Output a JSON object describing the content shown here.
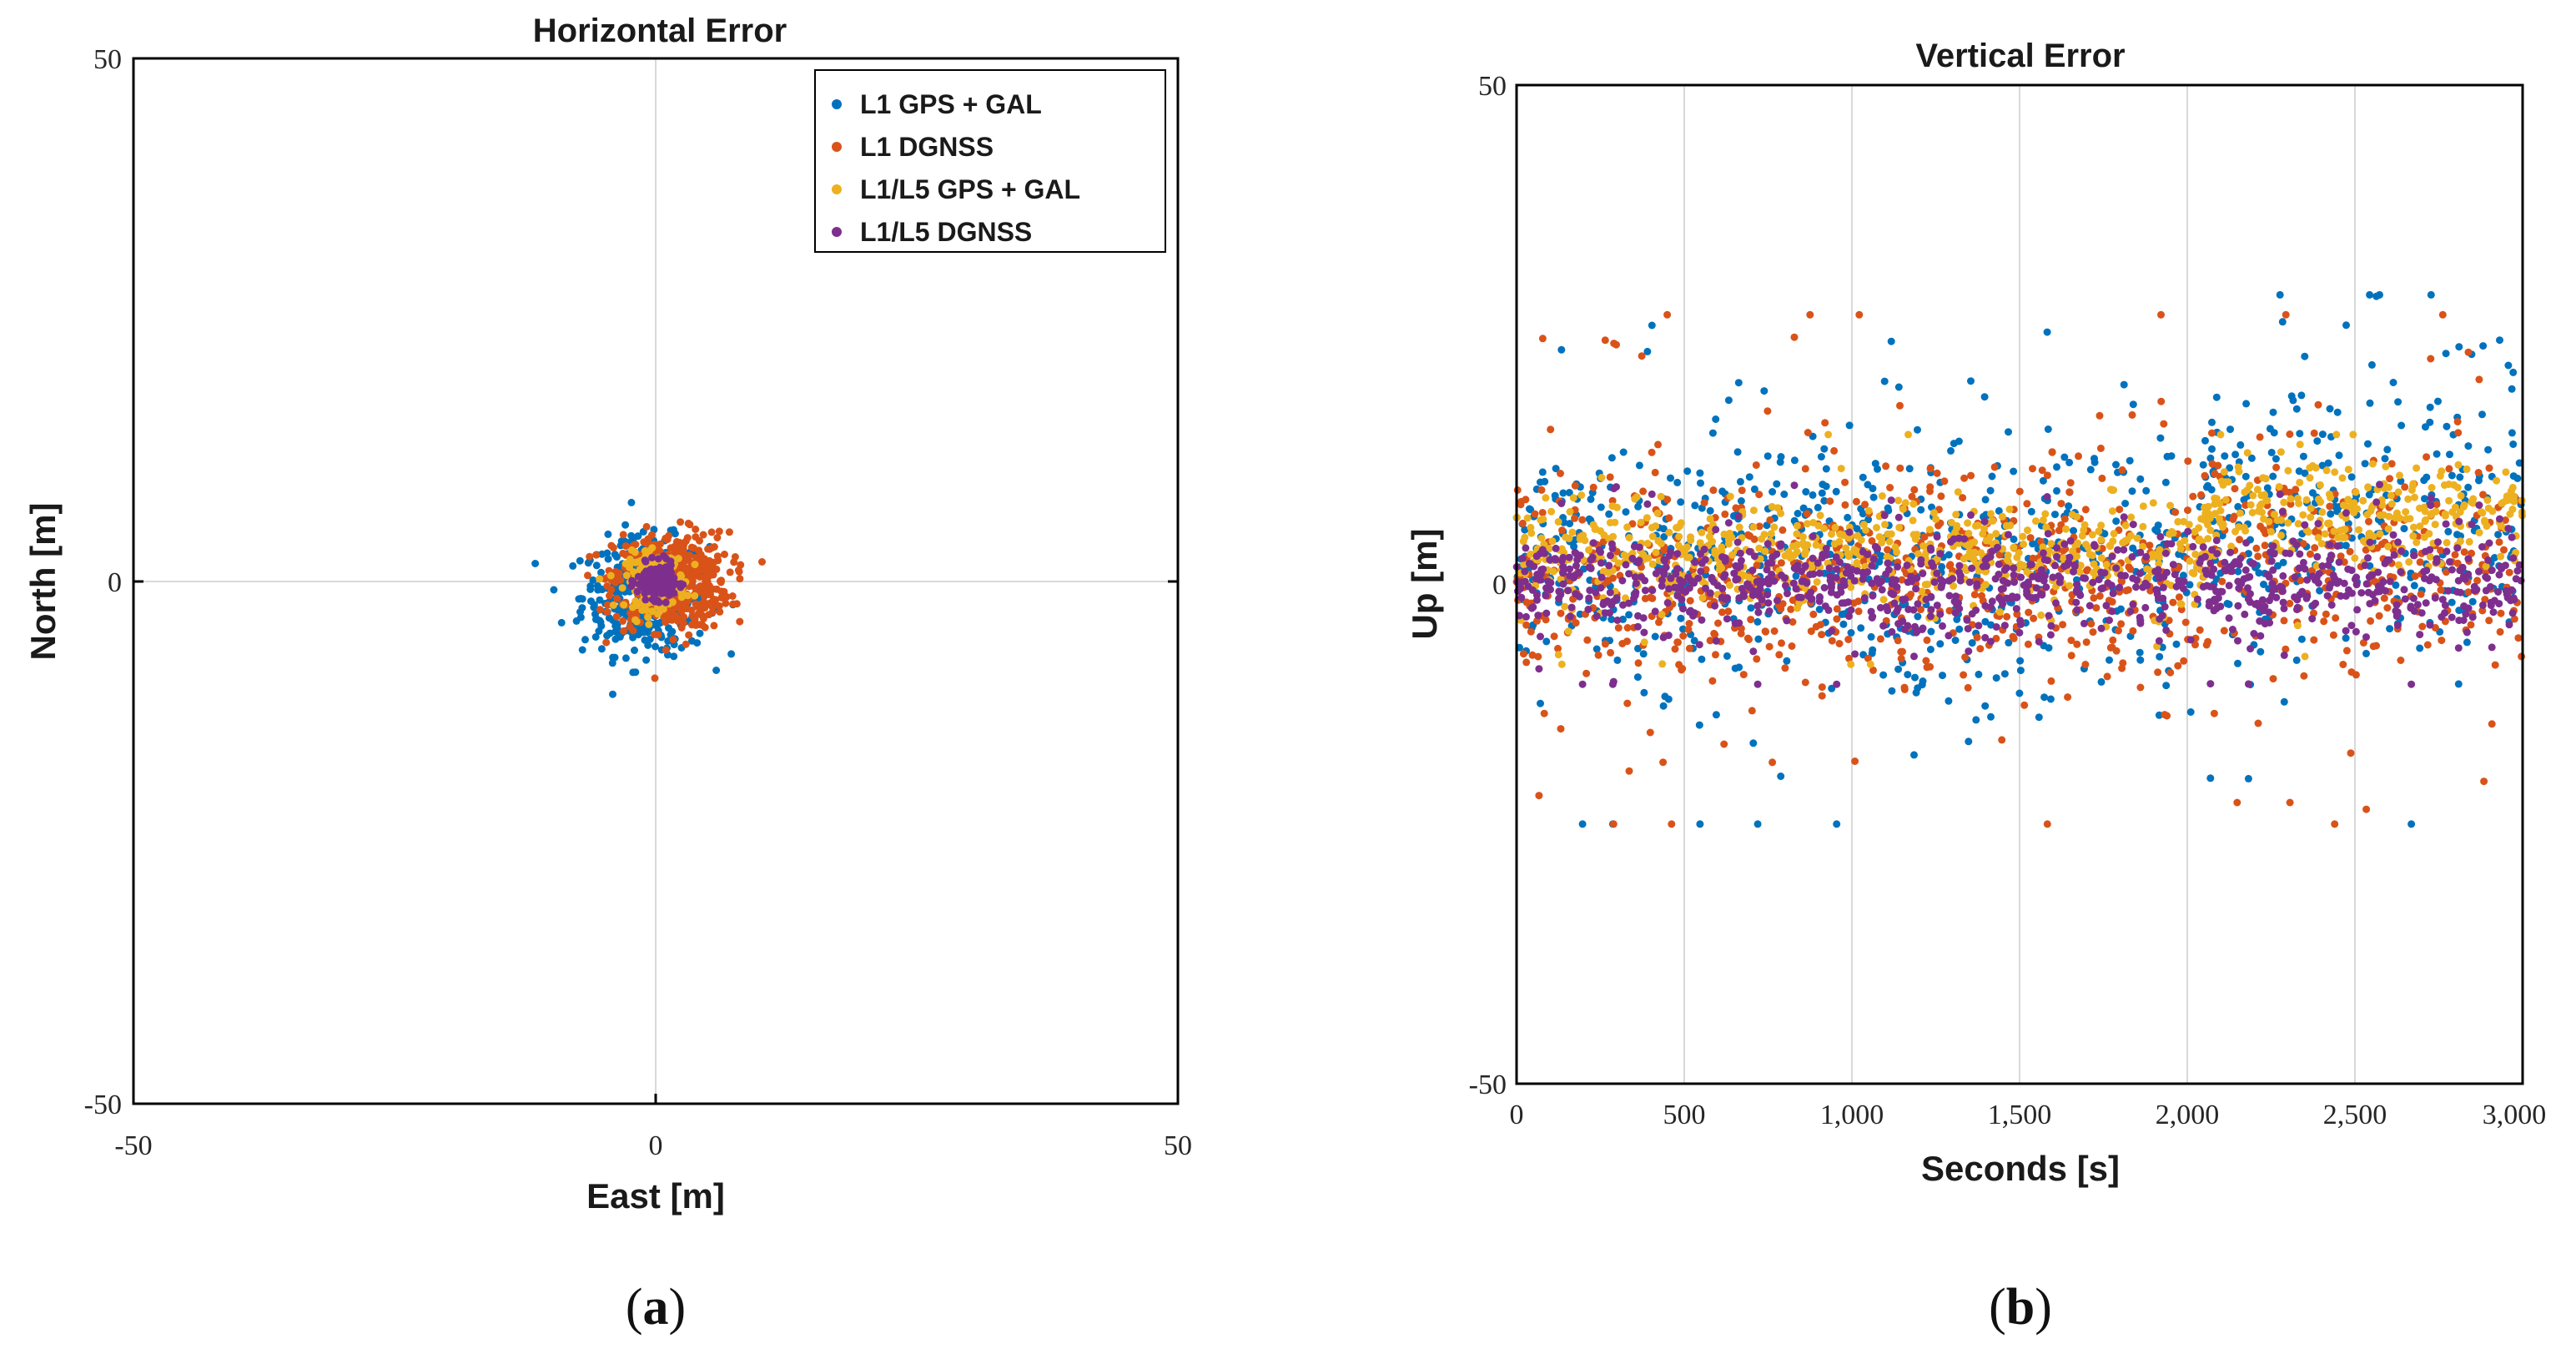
{
  "colors": {
    "series": [
      "#0072BD",
      "#D95319",
      "#EDB120",
      "#7E2F8E"
    ],
    "grid": "#d9d9d9",
    "axis": "#000000"
  },
  "chart_data": [
    {
      "type": "scatter",
      "title": "Horizontal Error",
      "xlabel": "East [m]",
      "ylabel": "North [m]",
      "xlim": [
        -50,
        50
      ],
      "ylim": [
        -50,
        50
      ],
      "xticks": [
        "-50",
        "0",
        "50"
      ],
      "yticks": [
        "-50",
        "0",
        "50"
      ],
      "grid": "zero lines",
      "legend_position": "top-right",
      "caption": "a",
      "series": [
        {
          "name": "L1 GPS + GAL",
          "center": [
            -1,
            -1.5
          ],
          "spread": [
            5.5,
            5.0
          ],
          "points": 420
        },
        {
          "name": "L1 DGNSS",
          "center": [
            1.5,
            0
          ],
          "spread": [
            5.0,
            4.2
          ],
          "points": 520
        },
        {
          "name": "L1/L5 GPS + GAL",
          "center": [
            0,
            0
          ],
          "spread": [
            2.6,
            2.4
          ],
          "points": 200
        },
        {
          "name": "L1/L5 DGNSS",
          "center": [
            0,
            0
          ],
          "spread": [
            1.6,
            1.5
          ],
          "points": 200
        }
      ]
    },
    {
      "type": "scatter",
      "title": "Vertical Error",
      "xlabel": "Seconds [s]",
      "ylabel": "Up [m]",
      "xlim": [
        0,
        3000
      ],
      "ylim": [
        -50,
        50
      ],
      "xticks": [
        "0",
        "500",
        "1,000",
        "1,500",
        "2,000",
        "2,500",
        "3,000"
      ],
      "yticks": [
        "-50",
        "0",
        "50"
      ],
      "grid": "vertical",
      "caption": "b",
      "series": [
        {
          "name": "L1 GPS + GAL",
          "range_min": -24,
          "range_max": 29,
          "typical_sigma": 8
        },
        {
          "name": "L1 DGNSS",
          "range_min": -24,
          "range_max": 27,
          "typical_sigma": 7
        },
        {
          "name": "L1/L5 GPS + GAL",
          "range_min": -8,
          "range_max": 15,
          "typical_sigma": 3
        },
        {
          "name": "L1/L5 DGNSS",
          "range_min": -10,
          "range_max": 10,
          "typical_sigma": 3
        }
      ]
    }
  ]
}
